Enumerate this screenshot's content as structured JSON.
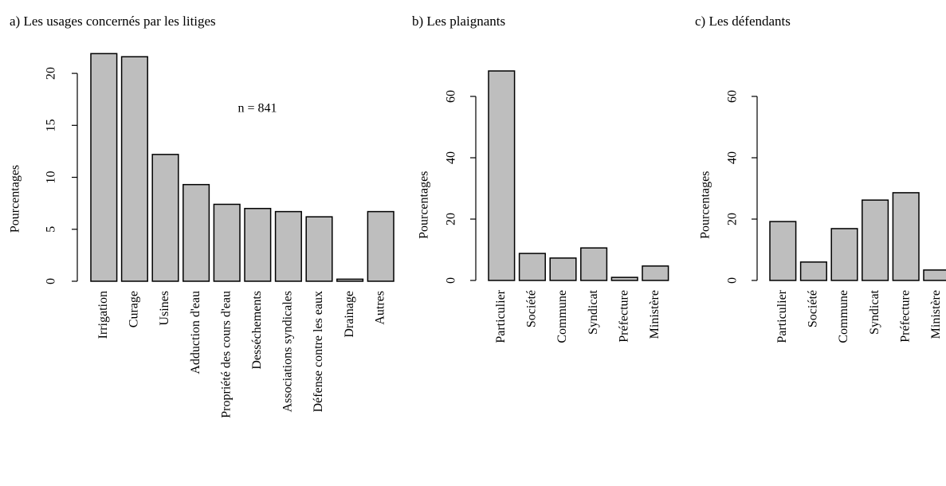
{
  "chart_data": [
    {
      "type": "bar",
      "title": "a) Les usages concernés par les litiges",
      "y_label": "Pourcentages",
      "annotation": "n = 841",
      "categories": [
        "Irrigation",
        "Curage",
        "Usines",
        "Adduction d'eau",
        "Propriété des cours d'eau",
        "Desséchements",
        "Associations syndicales",
        "Défense contre les eaux",
        "Drainage",
        "Autres"
      ],
      "values": [
        21.9,
        21.6,
        12.2,
        9.3,
        7.4,
        7.0,
        6.7,
        6.2,
        0.2,
        6.7
      ],
      "color": "#bebebe",
      "ylim": [
        0,
        22
      ],
      "yticks": [
        0,
        5,
        10,
        15,
        20
      ]
    },
    {
      "type": "bar",
      "title": "b) Les plaignants",
      "y_label": "Pourcentages",
      "categories": [
        "Particulier",
        "Société",
        "Commune",
        "Syndicat",
        "Préfecture",
        "Ministère"
      ],
      "values": [
        68.3,
        8.8,
        7.3,
        10.6,
        1.0,
        4.7
      ],
      "color": "#bebebe",
      "ylim": [
        0,
        70
      ],
      "yticks": [
        0,
        20,
        40,
        60
      ]
    },
    {
      "type": "bar",
      "title": "c) Les défendants",
      "y_label": "Pourcentages",
      "categories": [
        "Particulier",
        "Société",
        "Commune",
        "Syndicat",
        "Préfecture",
        "Ministère"
      ],
      "values": [
        19.2,
        6.0,
        16.9,
        26.2,
        28.6,
        3.4
      ],
      "color": "#bebebe",
      "ylim": [
        0,
        70
      ],
      "yticks": [
        0,
        20,
        40,
        60
      ]
    }
  ]
}
